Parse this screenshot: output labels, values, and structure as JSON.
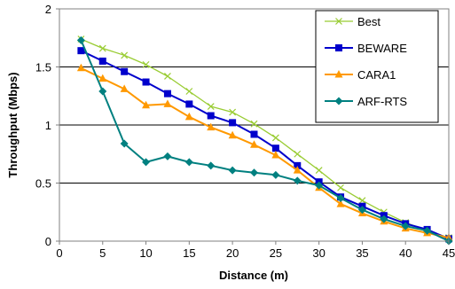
{
  "chart_data": {
    "type": "line",
    "xlabel": "Distance (m)",
    "ylabel": "Throughput (Mbps)",
    "xlim": [
      0,
      45
    ],
    "ylim": [
      0,
      2
    ],
    "xticks": [
      0,
      5,
      10,
      15,
      20,
      25,
      30,
      35,
      40,
      45
    ],
    "yticks": [
      0,
      0.5,
      1,
      1.5,
      2
    ],
    "ytick_labels": [
      "0",
      "0.5",
      "1",
      "1.5",
      "2"
    ],
    "grid": "horizontal",
    "legend_position": "top-right",
    "series": [
      {
        "name": "Best",
        "color": "#99cc33",
        "marker": "x",
        "x": [
          2.5,
          5,
          7.5,
          10,
          12.5,
          15,
          17.5,
          20,
          22.5,
          25,
          27.5,
          30,
          32.5,
          35,
          37.5,
          40,
          42.5,
          45
        ],
        "values": [
          1.74,
          1.66,
          1.6,
          1.52,
          1.42,
          1.29,
          1.16,
          1.11,
          1.01,
          0.89,
          0.75,
          0.61,
          0.46,
          0.35,
          0.25,
          0.16,
          0.09,
          0.03
        ]
      },
      {
        "name": "BEWARE",
        "color": "#0000cc",
        "marker": "square",
        "x": [
          2.5,
          5,
          7.5,
          10,
          12.5,
          15,
          17.5,
          20,
          22.5,
          25,
          27.5,
          30,
          32.5,
          35,
          37.5,
          40,
          42.5,
          45
        ],
        "values": [
          1.64,
          1.55,
          1.46,
          1.37,
          1.27,
          1.18,
          1.08,
          1.02,
          0.92,
          0.8,
          0.65,
          0.51,
          0.38,
          0.3,
          0.22,
          0.15,
          0.1,
          0.02
        ]
      },
      {
        "name": "CARA1",
        "color": "#ff9900",
        "marker": "triangle",
        "x": [
          2.5,
          5,
          7.5,
          10,
          12.5,
          15,
          17.5,
          20,
          22.5,
          25,
          27.5,
          30,
          32.5,
          35,
          37.5,
          40,
          42.5,
          45
        ],
        "values": [
          1.49,
          1.4,
          1.31,
          1.17,
          1.18,
          1.07,
          0.98,
          0.91,
          0.83,
          0.74,
          0.61,
          0.46,
          0.32,
          0.24,
          0.17,
          0.11,
          0.07,
          0.03
        ]
      },
      {
        "name": "ARF-RTS",
        "color": "#008080",
        "marker": "diamond",
        "x": [
          2.5,
          5,
          7.5,
          10,
          12.5,
          15,
          17.5,
          20,
          22.5,
          25,
          27.5,
          30,
          32.5,
          35,
          37.5,
          40,
          42.5,
          45
        ],
        "values": [
          1.73,
          1.29,
          0.84,
          0.68,
          0.73,
          0.68,
          0.65,
          0.61,
          0.59,
          0.57,
          0.52,
          0.48,
          0.37,
          0.27,
          0.19,
          0.13,
          0.09,
          0.0
        ]
      }
    ]
  }
}
